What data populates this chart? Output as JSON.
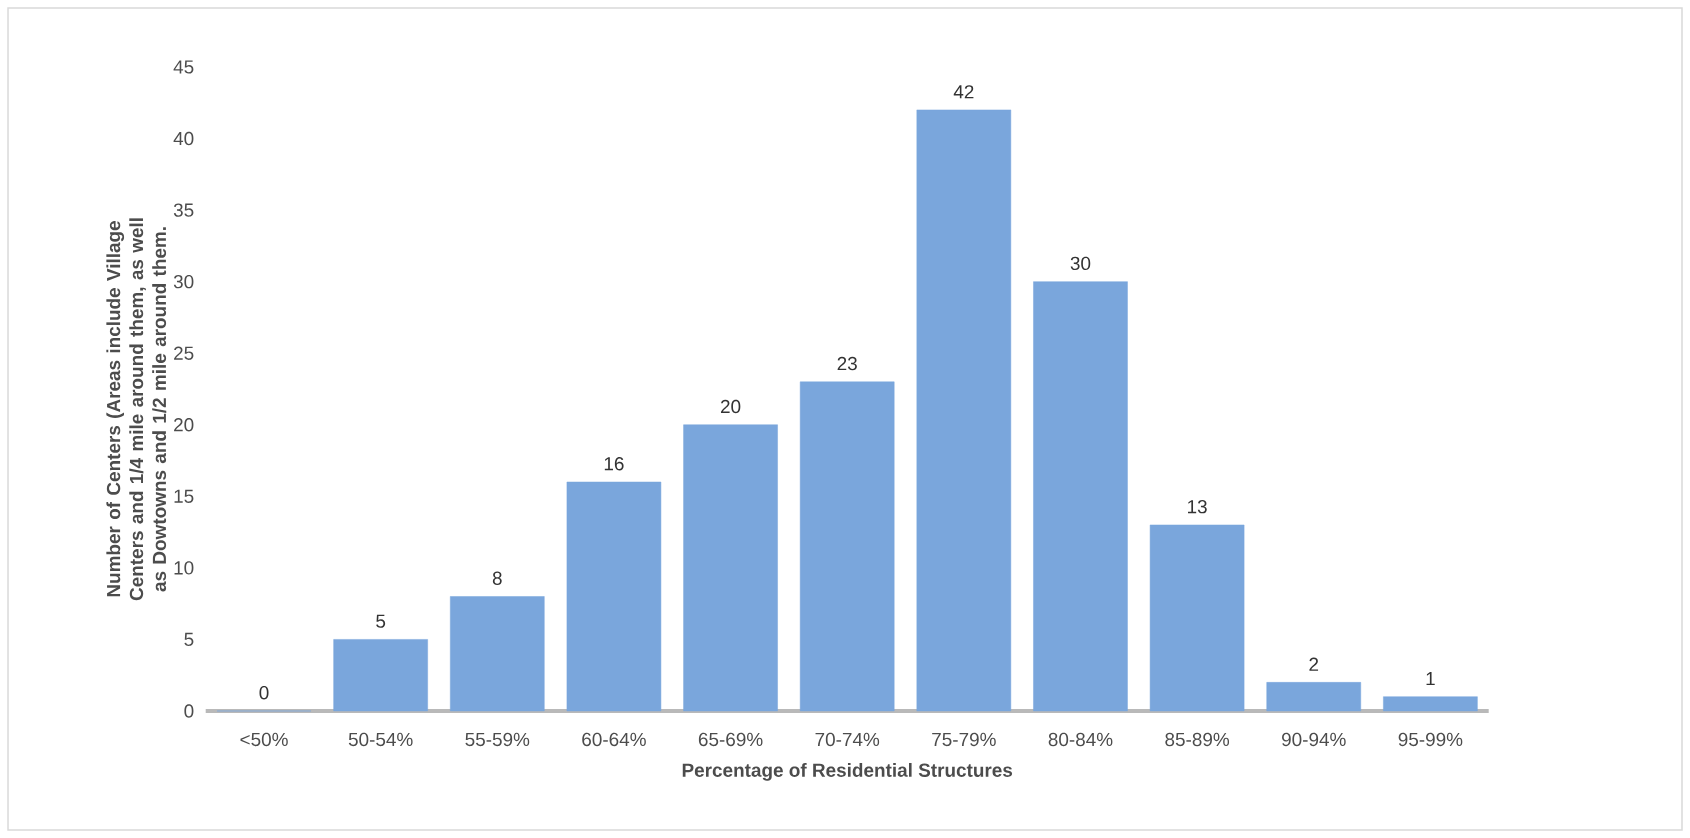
{
  "chart_data": {
    "type": "bar",
    "xlabel": "Percentage of Residential Structures",
    "ylabel": "Number of Centers (Areas include Village Centers and 1/4 mile around them, as well as Dowtowns and 1/2 mile around them.",
    "categories": [
      "<50%",
      "50-54%",
      "55-59%",
      "60-64%",
      "65-69%",
      "70-74%",
      "75-79%",
      "80-84%",
      "85-89%",
      "90-94%",
      "95-99%"
    ],
    "values": [
      0,
      5,
      8,
      16,
      20,
      23,
      42,
      30,
      13,
      2,
      1
    ],
    "color": "#7aa6dc",
    "ylim": [
      0,
      45
    ],
    "yticks": [
      0,
      5,
      10,
      15,
      20,
      25,
      30,
      35,
      40,
      45
    ],
    "data_labels": true
  }
}
